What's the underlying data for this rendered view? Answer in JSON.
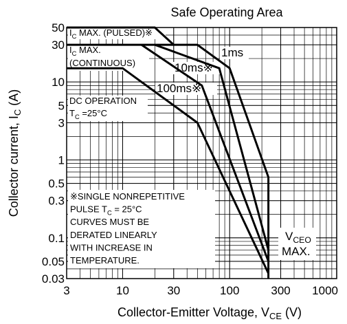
{
  "chart_data": {
    "type": "line",
    "title": "Safe Operating Area",
    "x_label": [
      "Collector-Emitter Voltage, V",
      "CE",
      " (V)"
    ],
    "y_label": [
      "Collector current, I",
      "C",
      " (A)"
    ],
    "log_x": true,
    "log_y": true,
    "grid": true,
    "xlim": [
      3,
      1000
    ],
    "ylim": [
      0.03,
      50
    ],
    "xticks": [
      3,
      10,
      30,
      100,
      300,
      1000
    ],
    "yticks": [
      50,
      30,
      10,
      5,
      3,
      1,
      0.5,
      0.3,
      0.1,
      0.05,
      0.03
    ],
    "series": [
      {
        "color": "#000000",
        "x": [
          3,
          20,
          30
        ],
        "values": [
          50,
          50,
          30
        ]
      },
      {
        "color": "#000000",
        "x": [
          3,
          50,
          100,
          230,
          230
        ],
        "values": [
          30,
          30,
          15,
          0.6,
          0.03
        ]
      },
      {
        "color": "#000000",
        "x": [
          20,
          80,
          230
        ],
        "values": [
          30,
          15,
          0.07
        ]
      },
      {
        "color": "#000000",
        "x": [
          15,
          55,
          230
        ],
        "values": [
          30,
          9,
          0.05
        ]
      },
      {
        "color": "#000000",
        "x": [
          3,
          10,
          50,
          230
        ],
        "values": [
          15,
          15,
          3,
          0.035
        ]
      }
    ],
    "annotations": [
      {
        "lines": [
          [
            "I",
            "C",
            " MAX. (PULSED)※"
          ]
        ]
      },
      {
        "lines": [
          [
            "I",
            "C",
            " MAX."
          ],
          [
            "(CONTINUOUS)"
          ]
        ]
      },
      {
        "lines": [
          [
            "1ms"
          ]
        ]
      },
      {
        "lines": [
          [
            "10ms※"
          ]
        ]
      },
      {
        "lines": [
          [
            "100ms※"
          ]
        ]
      },
      {
        "lines": [
          [
            "DC OPERATION"
          ],
          [
            "T",
            "C",
            " =25°C"
          ]
        ]
      },
      {
        "lines": [
          [
            "※SINGLE NONREPETITIVE"
          ],
          [
            "PULSE T",
            "C",
            " = 25°C"
          ],
          [
            "CURVES MUST BE"
          ],
          [
            "DERATED LINEARLY"
          ],
          [
            "WITH INCREASE IN"
          ],
          [
            "TEMPERATURE."
          ]
        ]
      },
      {
        "lines": [
          [
            "V",
            "CEO"
          ],
          [
            "MAX."
          ]
        ]
      }
    ]
  }
}
